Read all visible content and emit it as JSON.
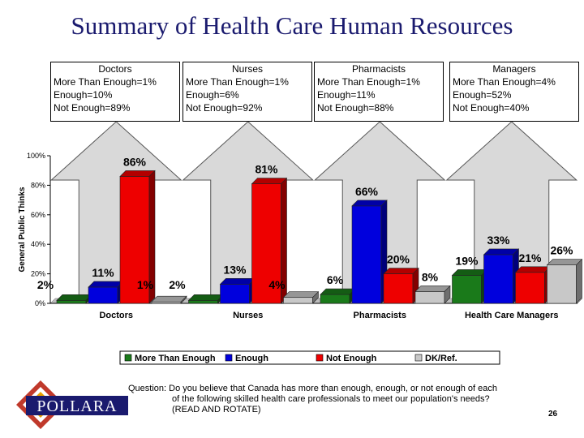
{
  "title": "Summary of Health Care Human Resources",
  "boxes": [
    {
      "heading": "Doctors",
      "lines": [
        "More Than Enough=1%",
        "Enough=10%",
        "Not Enough=89%"
      ]
    },
    {
      "heading": "Nurses",
      "lines": [
        "More Than Enough=1%",
        "Enough=6%",
        "Not Enough=92%"
      ]
    },
    {
      "heading": "Pharmacists",
      "lines": [
        "More Than Enough=1%",
        "Enough=11%",
        "Not Enough=88%"
      ]
    },
    {
      "heading": "Managers",
      "lines": [
        "More Than Enough=4%",
        "Enough=52%",
        "Not Enough=40%"
      ]
    }
  ],
  "question": {
    "line1": "Question: Do you believe that Canada has more than enough, enough, or not enough of each",
    "line2": "of the following skilled health care professionals to meet our population's needs?",
    "line3": "(READ AND ROTATE)"
  },
  "page_number": "26",
  "logo_text": "POLLARA",
  "colors": {
    "title": "#1a1a6e",
    "more_than_enough": "#1a7a1a",
    "enough": "#0000dd",
    "not_enough": "#ee0000",
    "dk_ref": "#c8c8c8",
    "arrow": "#d9d9d9"
  },
  "chart_data": {
    "type": "bar",
    "ylabel": "General Public Thinks",
    "ylim": [
      0,
      100
    ],
    "yticks": [
      "0%",
      "20%",
      "40%",
      "60%",
      "80%",
      "100%"
    ],
    "categories": [
      "Doctors",
      "Nurses",
      "Pharmacists",
      "Health Care Managers"
    ],
    "series": [
      {
        "name": "More Than Enough",
        "color": "#1a7a1a",
        "values": [
          2,
          2,
          6,
          19
        ],
        "labels": [
          "2%",
          "2%",
          "6%",
          "19%"
        ]
      },
      {
        "name": "Enough",
        "color": "#0000dd",
        "values": [
          11,
          13,
          66,
          33
        ],
        "labels": [
          "11%",
          "13%",
          "66%",
          "33%"
        ]
      },
      {
        "name": "Not Enough",
        "color": "#ee0000",
        "values": [
          86,
          81,
          20,
          21
        ],
        "labels": [
          "86%",
          "81%",
          "20%",
          "21%"
        ]
      },
      {
        "name": "DK/Ref.",
        "color": "#c8c8c8",
        "values": [
          1,
          4,
          8,
          26
        ],
        "labels": [
          "1%",
          "4%",
          "8%",
          "26%"
        ]
      }
    ],
    "legend_position": "bottom"
  }
}
